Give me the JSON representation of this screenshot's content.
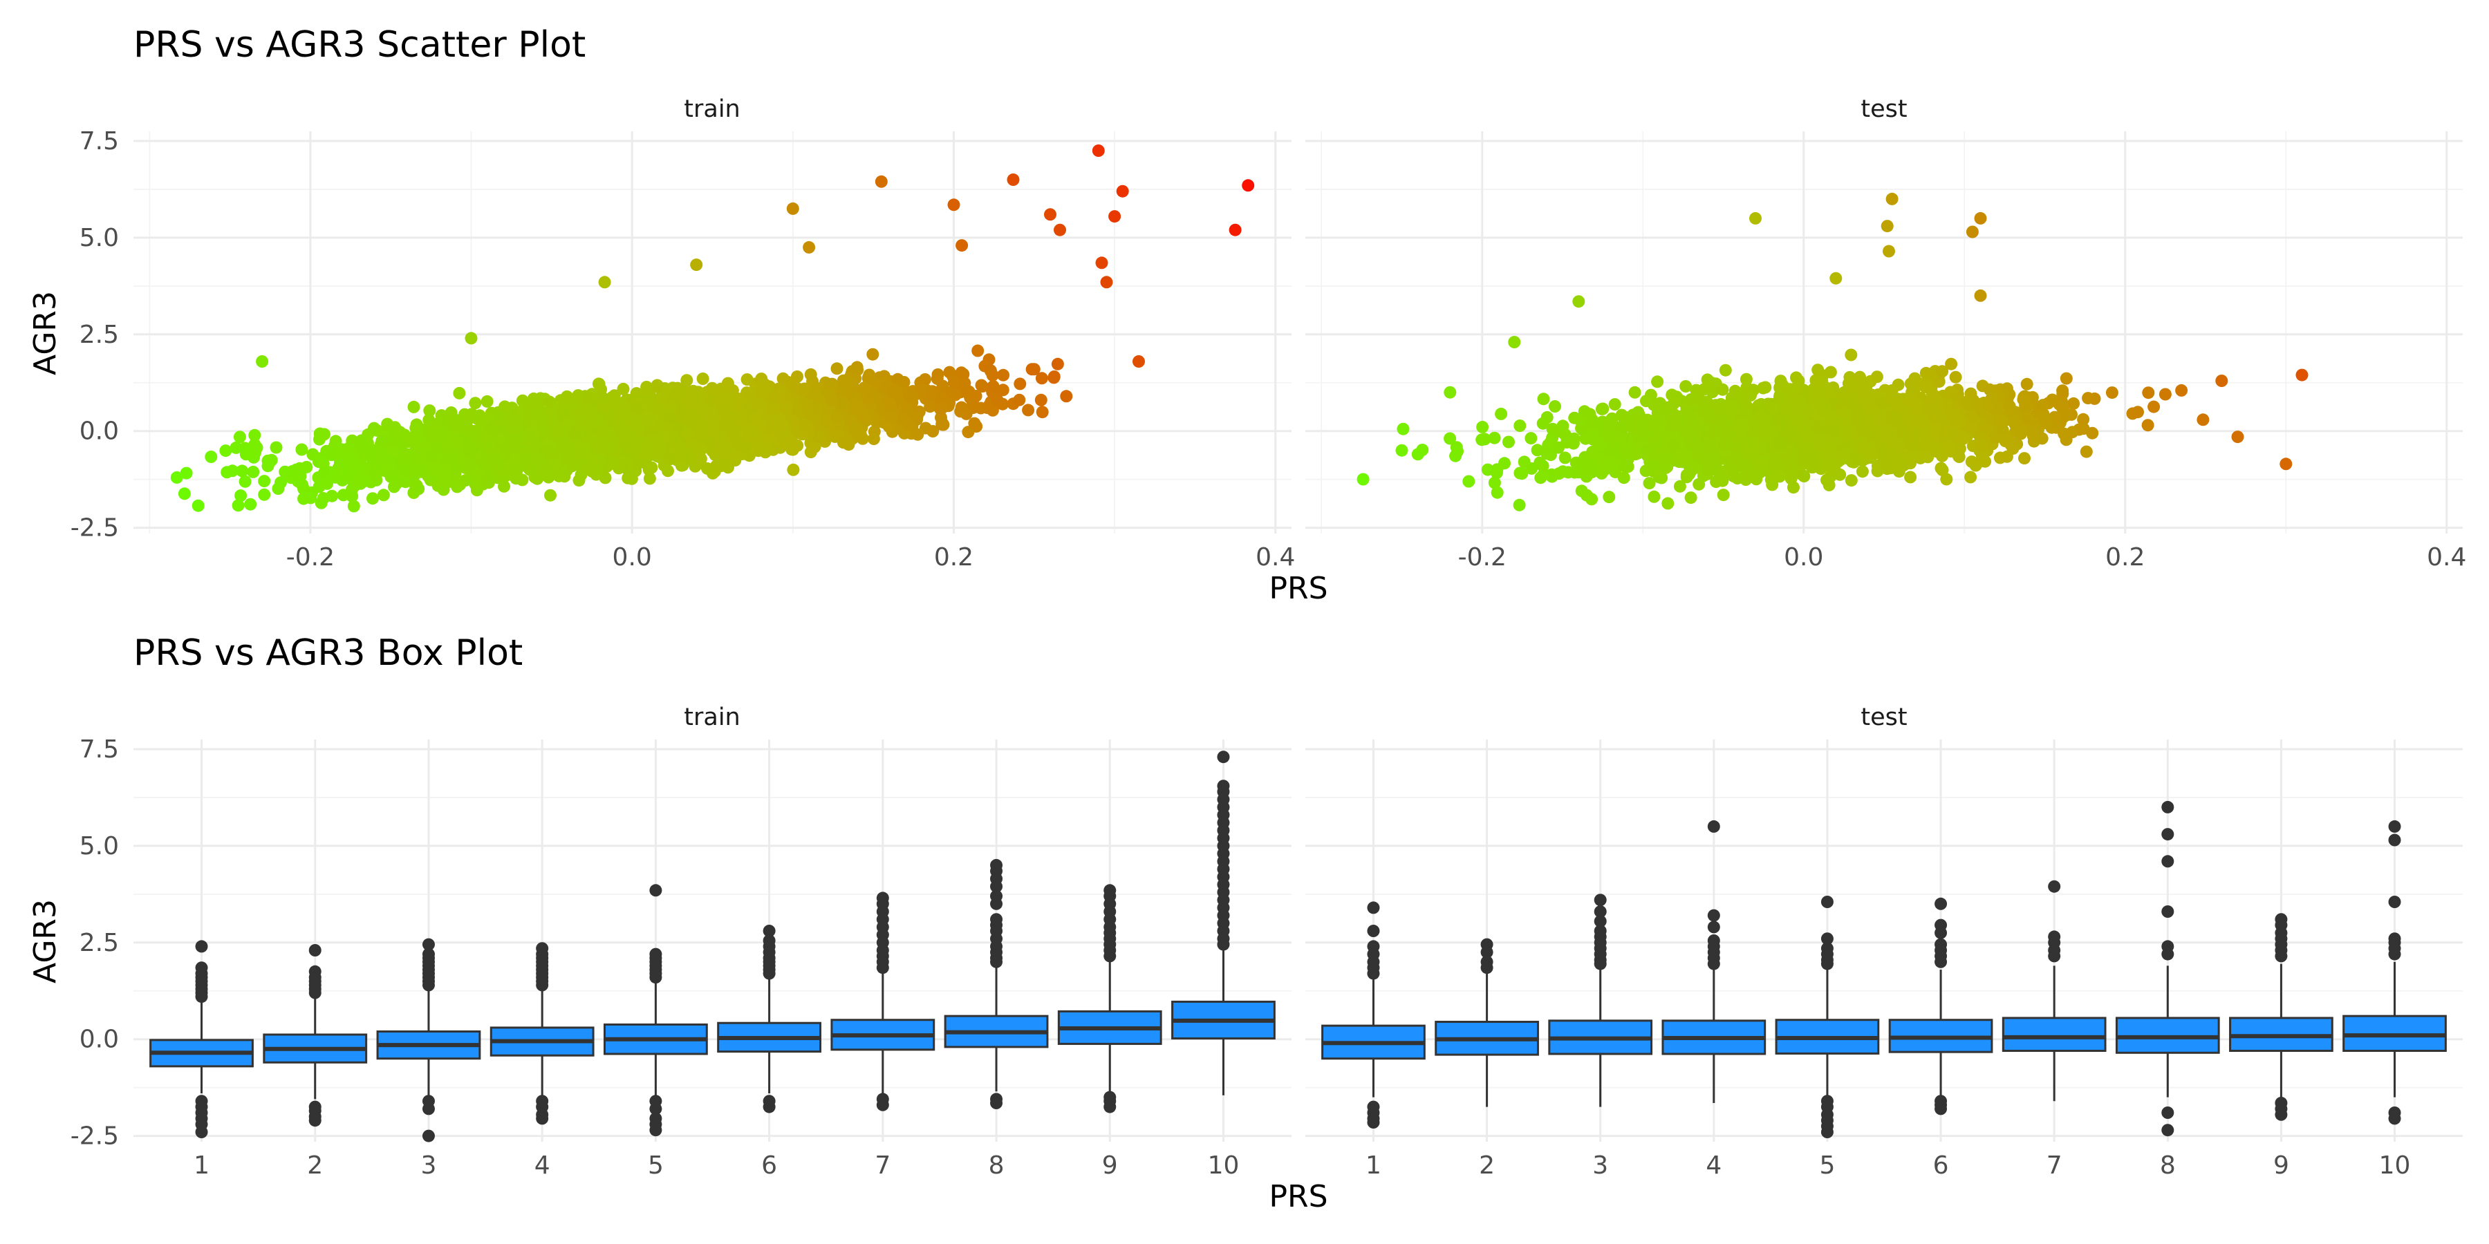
{
  "chart_data": [
    {
      "type": "scatter",
      "title": "PRS vs AGR3 Scatter Plot",
      "xlabel": "PRS",
      "ylabel": "AGR3",
      "xlim": [
        -0.31,
        0.41
      ],
      "ylim": [
        -2.65,
        7.75
      ],
      "x_ticks": [
        "-0.2",
        "0.0",
        "0.2",
        "0.4"
      ],
      "x_tick_values": [
        -0.2,
        0.0,
        0.2,
        0.4
      ],
      "y_ticks": [
        "-2.5",
        "0.0",
        "2.5",
        "5.0",
        "7.5"
      ],
      "y_tick_values": [
        -2.5,
        0.0,
        2.5,
        5.0,
        7.5
      ],
      "color_scale": {
        "low": "#66ff00",
        "mid": "#b5b800",
        "high": "#ff0000"
      },
      "facets": [
        {
          "name": "train",
          "cloud": {
            "n": 4200,
            "x_mean": 0.0,
            "x_sd": 0.09,
            "slope": 4.5,
            "noise_sd": 0.42
          },
          "outliers": [
            [
              -0.283,
              -1.2
            ],
            [
              -0.24,
              -0.6
            ],
            [
              -0.23,
              1.8
            ],
            [
              -0.1,
              2.4
            ],
            [
              -0.017,
              3.85
            ],
            [
              0.04,
              4.3
            ],
            [
              0.1,
              5.75
            ],
            [
              0.155,
              6.45
            ],
            [
              0.2,
              5.85
            ],
            [
              0.205,
              4.8
            ],
            [
              0.237,
              6.5
            ],
            [
              0.26,
              5.6
            ],
            [
              0.266,
              5.2
            ],
            [
              0.29,
              7.25
            ],
            [
              0.292,
              4.35
            ],
            [
              0.295,
              3.85
            ],
            [
              0.3,
              5.55
            ],
            [
              0.305,
              6.2
            ],
            [
              0.315,
              1.8
            ],
            [
              0.375,
              5.2
            ],
            [
              0.383,
              6.35
            ],
            [
              0.27,
              0.9
            ],
            [
              0.25,
              1.6
            ],
            [
              0.11,
              4.75
            ]
          ]
        },
        {
          "name": "test",
          "cloud": {
            "n": 2300,
            "x_mean": 0.0,
            "x_sd": 0.075,
            "slope": 2.5,
            "noise_sd": 0.5
          },
          "outliers": [
            [
              -0.25,
              -0.5
            ],
            [
              -0.24,
              -0.6
            ],
            [
              -0.22,
              1.0
            ],
            [
              -0.18,
              2.3
            ],
            [
              -0.14,
              3.35
            ],
            [
              -0.03,
              5.5
            ],
            [
              0.055,
              6.0
            ],
            [
              0.053,
              4.65
            ],
            [
              0.052,
              5.3
            ],
            [
              0.105,
              5.15
            ],
            [
              0.11,
              5.5
            ],
            [
              0.11,
              3.5
            ],
            [
              0.27,
              -0.15
            ],
            [
              0.3,
              -0.85
            ],
            [
              0.31,
              1.45
            ],
            [
              0.26,
              1.3
            ],
            [
              0.235,
              1.05
            ],
            [
              0.225,
              0.95
            ],
            [
              0.02,
              3.95
            ]
          ]
        }
      ]
    },
    {
      "type": "box",
      "title": "PRS vs AGR3 Box Plot",
      "xlabel": "PRS",
      "ylabel": "AGR3",
      "categories": [
        "1",
        "2",
        "3",
        "4",
        "5",
        "6",
        "7",
        "8",
        "9",
        "10"
      ],
      "ylim": [
        -2.65,
        7.75
      ],
      "y_ticks": [
        "-2.5",
        "0.0",
        "2.5",
        "5.0",
        "7.5"
      ],
      "y_tick_values": [
        -2.5,
        0.0,
        2.5,
        5.0,
        7.5
      ],
      "box_color": "#1E90FF",
      "facets": [
        {
          "name": "train",
          "boxes": [
            {
              "q1": -0.7,
              "median": -0.35,
              "q3": -0.02,
              "whisker_low": -1.4,
              "whisker_high": 1.0,
              "outliers": [
                2.4,
                1.85,
                1.7,
                1.6,
                1.5,
                1.4,
                1.3,
                1.2,
                1.1,
                -1.6,
                -1.75,
                -1.9,
                -2.05,
                -2.2,
                -2.4
              ]
            },
            {
              "q1": -0.6,
              "median": -0.25,
              "q3": 0.12,
              "whisker_low": -1.55,
              "whisker_high": 1.1,
              "outliers": [
                2.3,
                1.75,
                1.6,
                1.5,
                1.4,
                1.3,
                1.2,
                -1.75,
                -1.85,
                -2.0,
                -2.1
              ]
            },
            {
              "q1": -0.5,
              "median": -0.15,
              "q3": 0.2,
              "whisker_low": -1.5,
              "whisker_high": 1.25,
              "outliers": [
                2.45,
                2.2,
                2.1,
                2.0,
                1.9,
                1.8,
                1.7,
                1.6,
                1.5,
                1.4,
                -1.6,
                -1.8,
                -2.5
              ]
            },
            {
              "q1": -0.42,
              "median": -0.05,
              "q3": 0.3,
              "whisker_low": -1.5,
              "whisker_high": 1.3,
              "outliers": [
                2.35,
                2.2,
                2.1,
                2.0,
                1.9,
                1.8,
                1.7,
                1.6,
                1.5,
                1.4,
                -1.6,
                -1.75,
                -1.95,
                -2.05
              ]
            },
            {
              "q1": -0.38,
              "median": 0.0,
              "q3": 0.38,
              "whisker_low": -1.45,
              "whisker_high": 1.5,
              "outliers": [
                3.85,
                2.2,
                2.1,
                2.0,
                1.9,
                1.8,
                1.7,
                1.6,
                -1.6,
                -1.8,
                -2.05,
                -2.2,
                -2.35
              ]
            },
            {
              "q1": -0.32,
              "median": 0.03,
              "q3": 0.42,
              "whisker_low": -1.4,
              "whisker_high": 1.55,
              "outliers": [
                2.8,
                2.55,
                2.4,
                2.25,
                2.1,
                2.0,
                1.9,
                1.8,
                1.7,
                -1.6,
                -1.75
              ]
            },
            {
              "q1": -0.27,
              "median": 0.1,
              "q3": 0.5,
              "whisker_low": -1.4,
              "whisker_high": 1.7,
              "outliers": [
                3.65,
                3.5,
                3.3,
                3.1,
                2.9,
                2.7,
                2.5,
                2.3,
                2.15,
                2.0,
                1.85,
                -1.55,
                -1.7
              ]
            },
            {
              "q1": -0.2,
              "median": 0.18,
              "q3": 0.6,
              "whisker_low": -1.35,
              "whisker_high": 1.85,
              "outliers": [
                4.5,
                4.35,
                4.15,
                3.95,
                3.7,
                3.5,
                3.1,
                2.95,
                2.8,
                2.6,
                2.4,
                2.25,
                2.1,
                2.0,
                -1.55,
                -1.65
              ]
            },
            {
              "q1": -0.12,
              "median": 0.28,
              "q3": 0.72,
              "whisker_low": -1.35,
              "whisker_high": 2.0,
              "outliers": [
                3.85,
                3.7,
                3.5,
                3.3,
                3.1,
                2.9,
                2.75,
                2.6,
                2.45,
                2.3,
                2.15,
                -1.5,
                -1.6,
                -1.75
              ]
            },
            {
              "q1": 0.02,
              "median": 0.48,
              "q3": 0.97,
              "whisker_low": -1.45,
              "whisker_high": 2.3,
              "outliers": [
                7.3,
                6.55,
                6.4,
                6.2,
                6.0,
                5.8,
                5.6,
                5.4,
                5.2,
                5.0,
                4.8,
                4.6,
                4.4,
                4.2,
                4.0,
                3.8,
                3.6,
                3.4,
                3.2,
                3.0,
                2.8,
                2.6,
                2.45
              ]
            }
          ]
        },
        {
          "name": "test",
          "boxes": [
            {
              "q1": -0.5,
              "median": -0.1,
              "q3": 0.35,
              "whisker_low": -1.5,
              "whisker_high": 1.6,
              "outliers": [
                3.4,
                2.8,
                2.4,
                2.2,
                2.0,
                1.85,
                1.7,
                -1.75,
                -1.9,
                -2.05,
                -2.15
              ]
            },
            {
              "q1": -0.4,
              "median": 0.0,
              "q3": 0.45,
              "whisker_low": -1.75,
              "whisker_high": 1.7,
              "outliers": [
                2.45,
                2.25,
                2.0,
                1.85
              ]
            },
            {
              "q1": -0.38,
              "median": 0.02,
              "q3": 0.48,
              "whisker_low": -1.75,
              "whisker_high": 1.8,
              "outliers": [
                3.6,
                3.3,
                3.05,
                2.8,
                2.65,
                2.5,
                2.35,
                2.2,
                2.05,
                1.95
              ]
            },
            {
              "q1": -0.38,
              "median": 0.03,
              "q3": 0.48,
              "whisker_low": -1.65,
              "whisker_high": 1.8,
              "outliers": [
                5.5,
                3.2,
                2.9,
                2.55,
                2.4,
                2.25,
                2.1,
                1.95
              ]
            },
            {
              "q1": -0.37,
              "median": 0.03,
              "q3": 0.5,
              "whisker_low": -1.45,
              "whisker_high": 1.8,
              "outliers": [
                3.55,
                2.6,
                2.35,
                2.2,
                2.05,
                1.95,
                -1.6,
                -1.75,
                -1.95,
                -2.1,
                -2.25,
                -2.4
              ]
            },
            {
              "q1": -0.33,
              "median": 0.04,
              "q3": 0.5,
              "whisker_low": -1.5,
              "whisker_high": 1.8,
              "outliers": [
                3.5,
                2.95,
                2.75,
                2.45,
                2.3,
                2.15,
                2.0,
                -1.6,
                -1.7,
                -1.8
              ]
            },
            {
              "q1": -0.3,
              "median": 0.05,
              "q3": 0.55,
              "whisker_low": -1.6,
              "whisker_high": 1.9,
              "outliers": [
                3.95,
                2.65,
                2.5,
                2.3,
                2.15
              ]
            },
            {
              "q1": -0.35,
              "median": 0.05,
              "q3": 0.55,
              "whisker_low": -1.5,
              "whisker_high": 1.9,
              "outliers": [
                6.0,
                5.3,
                4.6,
                3.3,
                2.4,
                2.2,
                -1.9,
                -2.35
              ]
            },
            {
              "q1": -0.3,
              "median": 0.08,
              "q3": 0.55,
              "whisker_low": -1.6,
              "whisker_high": 1.95,
              "outliers": [
                3.1,
                2.95,
                2.75,
                2.6,
                2.45,
                2.3,
                2.15,
                -1.65,
                -1.8,
                -1.95
              ]
            },
            {
              "q1": -0.3,
              "median": 0.1,
              "q3": 0.6,
              "whisker_low": -1.5,
              "whisker_high": 2.0,
              "outliers": [
                5.5,
                5.15,
                3.55,
                2.6,
                2.5,
                2.35,
                2.2,
                -1.9,
                -2.05
              ]
            }
          ]
        }
      ]
    }
  ]
}
